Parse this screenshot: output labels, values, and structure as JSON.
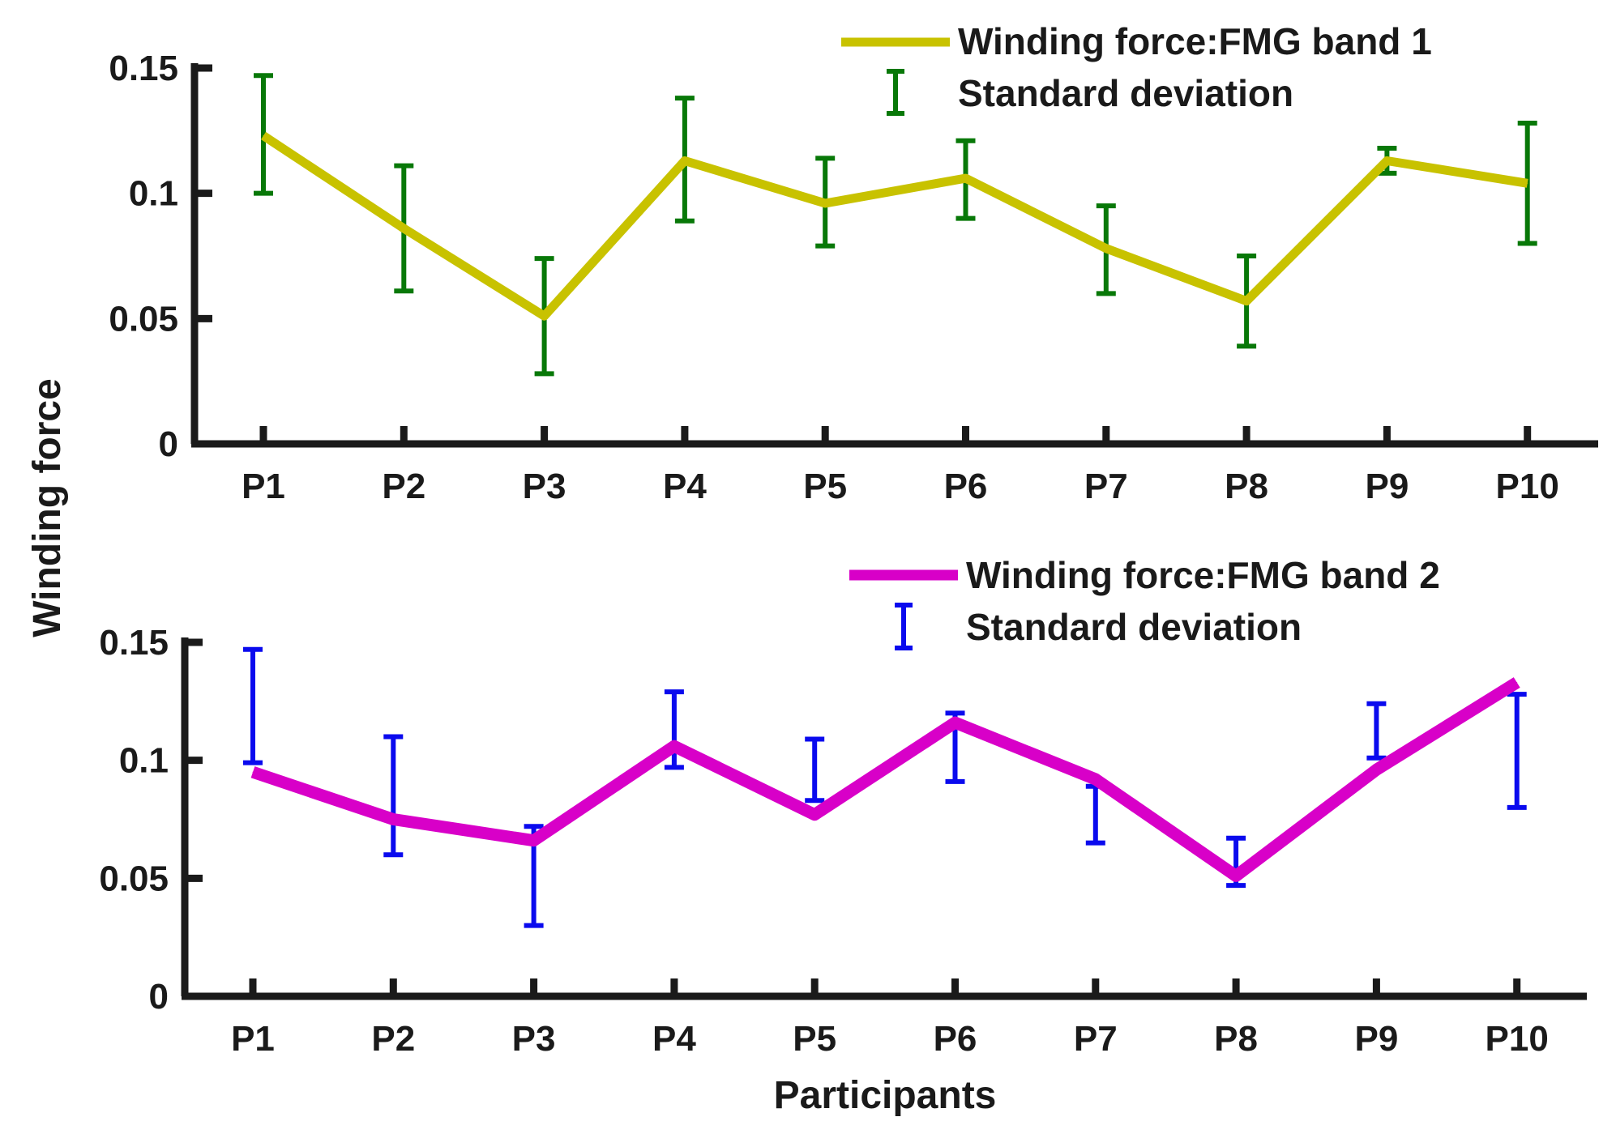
{
  "chart_data": {
    "ylabel": "Winding force",
    "xlabel": "Participants",
    "charts": [
      {
        "type": "line",
        "categories": [
          "P1",
          "P2",
          "P3",
          "P4",
          "P5",
          "P6",
          "P7",
          "P8",
          "P9",
          "P10"
        ],
        "ylim": [
          0,
          0.15
        ],
        "yticks": [
          0,
          0.05,
          0.1,
          0.15
        ],
        "ytick_labels": [
          "0",
          "0.05",
          "0.1",
          "0.15"
        ],
        "series": [
          {
            "name": "Winding force:FMG band 1",
            "color": "#c8c200",
            "values": [
              0.123,
              0.086,
              0.051,
              0.113,
              0.096,
              0.106,
              0.078,
              0.057,
              0.113,
              0.104
            ],
            "err_low": [
              0.1,
              0.061,
              0.028,
              0.089,
              0.079,
              0.09,
              0.06,
              0.039,
              0.108,
              0.08
            ],
            "err_high": [
              0.147,
              0.111,
              0.074,
              0.138,
              0.114,
              0.121,
              0.095,
              0.075,
              0.118,
              0.128
            ]
          }
        ],
        "errorbar_label": "Standard deviation",
        "errorbar_color": "#087808",
        "legend_position": "top-right"
      },
      {
        "type": "line",
        "categories": [
          "P1",
          "P2",
          "P3",
          "P4",
          "P5",
          "P6",
          "P7",
          "P8",
          "P9",
          "P10"
        ],
        "ylim": [
          0,
          0.15
        ],
        "yticks": [
          0,
          0.05,
          0.1,
          0.15
        ],
        "ytick_labels": [
          "0",
          "0.05",
          "0.1",
          "0.15"
        ],
        "series": [
          {
            "name": "Winding force:FMG band 2",
            "color": "#d800c8",
            "values": [
              0.095,
              0.075,
              0.066,
              0.106,
              0.077,
              0.116,
              0.092,
              0.051,
              0.096,
              0.133
            ],
            "err_low": [
              0.099,
              0.06,
              0.03,
              0.097,
              0.083,
              0.091,
              0.065,
              0.047,
              0.101,
              0.08
            ],
            "err_high": [
              0.147,
              0.11,
              0.072,
              0.129,
              0.109,
              0.12,
              0.089,
              0.067,
              0.124,
              0.128
            ]
          }
        ],
        "errorbar_label": "Standard deviation",
        "errorbar_color": "#0a0aee",
        "legend_position": "top-right"
      }
    ]
  }
}
